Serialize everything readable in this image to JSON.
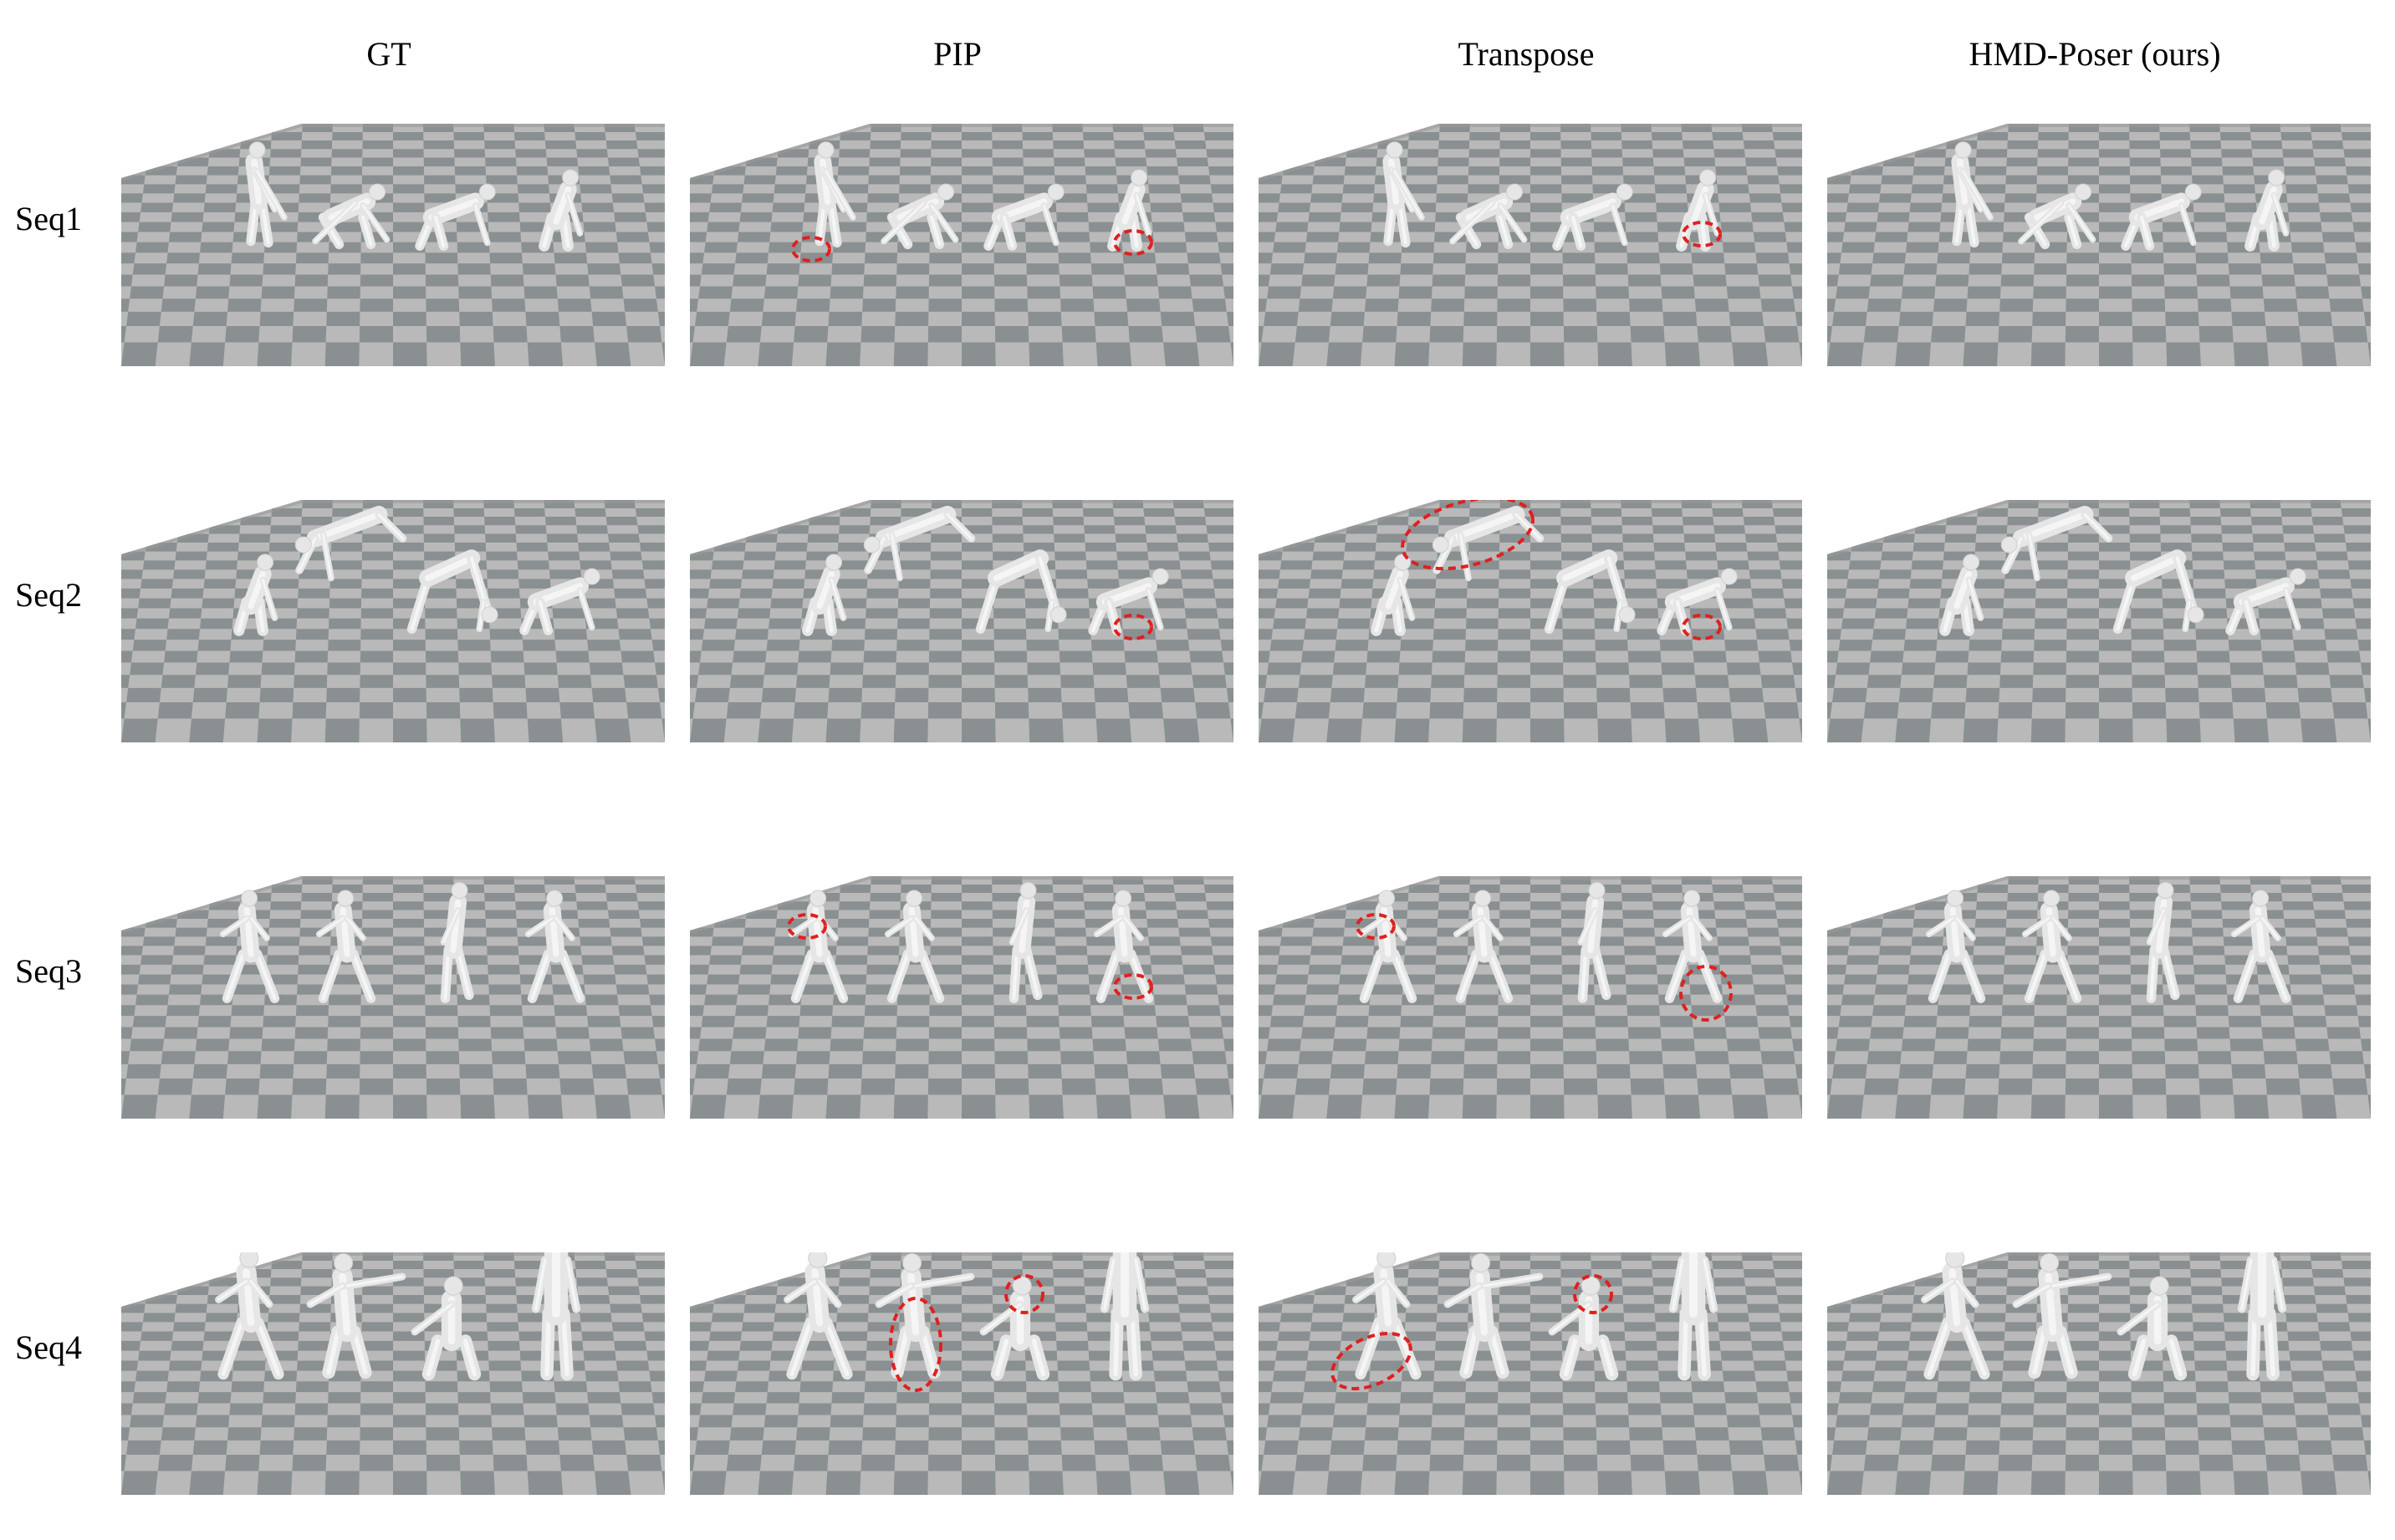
{
  "figure": {
    "columns": [
      "GT",
      "PIP",
      "Transpose",
      "HMD-Poser (ours)"
    ],
    "rows": [
      {
        "label": "Seq1",
        "poses": [
          "standing-bend",
          "crouch-reach",
          "crawl",
          "crouch"
        ],
        "errors": {
          "PIP": [
            "left-foot",
            "right-foot"
          ],
          "Transpose": [
            "right-knee"
          ]
        }
      },
      {
        "label": "Seq2",
        "poses": [
          "crouch",
          "dive",
          "bridge",
          "crawl"
        ],
        "errors": {
          "PIP": [
            "right-foot"
          ],
          "Transpose": [
            "torso",
            "right-foot"
          ]
        }
      },
      {
        "label": "Seq3",
        "poses": [
          "lunge",
          "lunge",
          "step",
          "lunge"
        ],
        "errors": {
          "PIP": [
            "left-arm",
            "right-knee"
          ],
          "Transpose": [
            "left-arm",
            "right-leg"
          ]
        }
      },
      {
        "label": "Seq4",
        "poses": [
          "lunge",
          "jump",
          "squat",
          "stand"
        ],
        "errors": {
          "PIP": [
            "center-legs",
            "center-head"
          ],
          "Transpose": [
            "left-leg",
            "center-head"
          ]
        }
      }
    ],
    "colors": {
      "floor_light": "#b9b9b9",
      "floor_dark": "#8a9092",
      "figure": "#e6e6e6",
      "error_marker": "#e02020"
    }
  }
}
